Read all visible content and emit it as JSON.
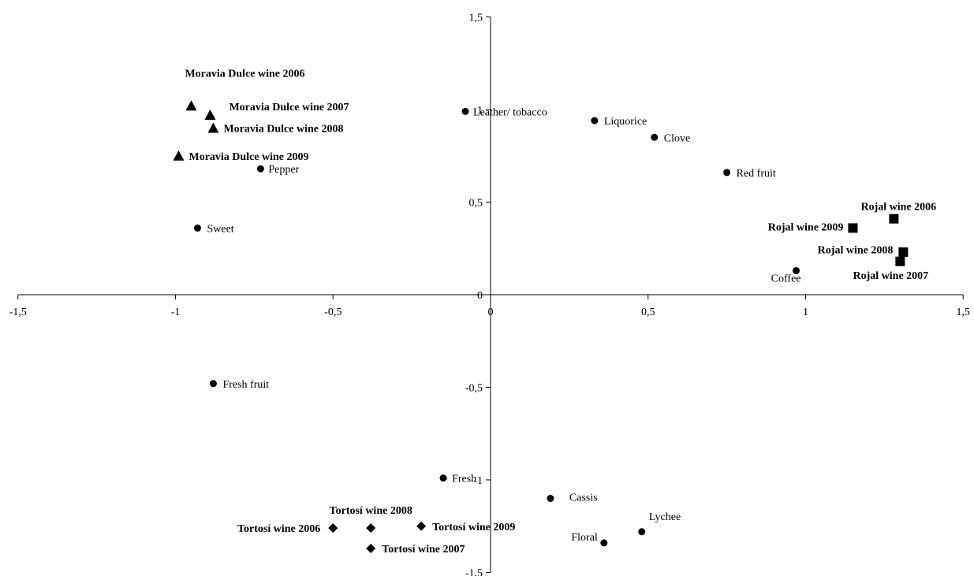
{
  "chart_data": {
    "type": "scatter",
    "title": "",
    "xlabel": "",
    "ylabel": "",
    "xlim": [
      -1.5,
      1.5
    ],
    "ylim": [
      -1.5,
      1.5
    ],
    "x_ticks": [
      {
        "value": -1.5,
        "label": "-1,5"
      },
      {
        "value": -1,
        "label": "-1"
      },
      {
        "value": -0.5,
        "label": "-0,5"
      },
      {
        "value": 0,
        "label": "0"
      },
      {
        "value": 0.5,
        "label": "0,5"
      },
      {
        "value": 1,
        "label": "1"
      },
      {
        "value": 1.5,
        "label": "1,5"
      }
    ],
    "y_ticks": [
      {
        "value": 1.5,
        "label": "1,5"
      },
      {
        "value": 1,
        "label": "1"
      },
      {
        "value": 0.5,
        "label": "0,5"
      },
      {
        "value": 0,
        "label": "0"
      },
      {
        "value": -0.5,
        "label": "-0,5"
      },
      {
        "value": -1,
        "label": "-1"
      },
      {
        "value": -1.5,
        "label": "-1,5"
      }
    ],
    "grid": false,
    "legend": "none",
    "color": "#000000",
    "series": [
      {
        "marker": "circle",
        "points": [
          {
            "label": "Leather/ tobacco",
            "x": -0.08,
            "y": 0.99
          },
          {
            "label": "Liquorice",
            "x": 0.33,
            "y": 0.94
          },
          {
            "label": "Clove",
            "x": 0.52,
            "y": 0.85
          },
          {
            "label": "Red fruit",
            "x": 0.75,
            "y": 0.66
          },
          {
            "label": "Pepper",
            "x": -0.73,
            "y": 0.68
          },
          {
            "label": "Sweet",
            "x": -0.93,
            "y": 0.36
          },
          {
            "label": "Coffee",
            "x": 0.97,
            "y": 0.13
          },
          {
            "label": "Fresh fruit",
            "x": -0.88,
            "y": -0.48
          },
          {
            "label": "Fresh",
            "x": -0.15,
            "y": -0.99
          },
          {
            "label": "Cassis",
            "x": 0.19,
            "y": -1.1
          },
          {
            "label": "Lychee",
            "x": 0.48,
            "y": -1.28
          },
          {
            "label": "Floral",
            "x": 0.36,
            "y": -1.34
          }
        ]
      },
      {
        "marker": "triangle",
        "points": [
          {
            "label": "Moravia Dulce wine 2006",
            "x": -0.95,
            "y": 1.02
          },
          {
            "label": "Moravia Dulce wine 2007",
            "x": -0.89,
            "y": 0.97
          },
          {
            "label": "Moravia Dulce wine 2008",
            "x": -0.88,
            "y": 0.9
          },
          {
            "label": "Moravia Dulce wine 2009",
            "x": -0.99,
            "y": 0.75
          }
        ]
      },
      {
        "marker": "square",
        "points": [
          {
            "label": "Rojal wine 2006",
            "x": 1.28,
            "y": 0.41
          },
          {
            "label": "Rojal wine 2009",
            "x": 1.15,
            "y": 0.36
          },
          {
            "label": "Rojal wine 2008",
            "x": 1.3,
            "y": 0.18
          },
          {
            "label": "Rojal wine 2007",
            "x": 1.31,
            "y": 0.23
          }
        ]
      },
      {
        "marker": "diamond",
        "points": [
          {
            "label": "Tortosí wine 2006",
            "x": -0.5,
            "y": -1.26
          },
          {
            "label": "Tortosí wine 2008",
            "x": -0.38,
            "y": -1.26
          },
          {
            "label": "Tortosí wine 2009",
            "x": -0.22,
            "y": -1.25
          },
          {
            "label": "Tortosí wine 2007",
            "x": -0.38,
            "y": -1.37
          }
        ]
      }
    ]
  }
}
